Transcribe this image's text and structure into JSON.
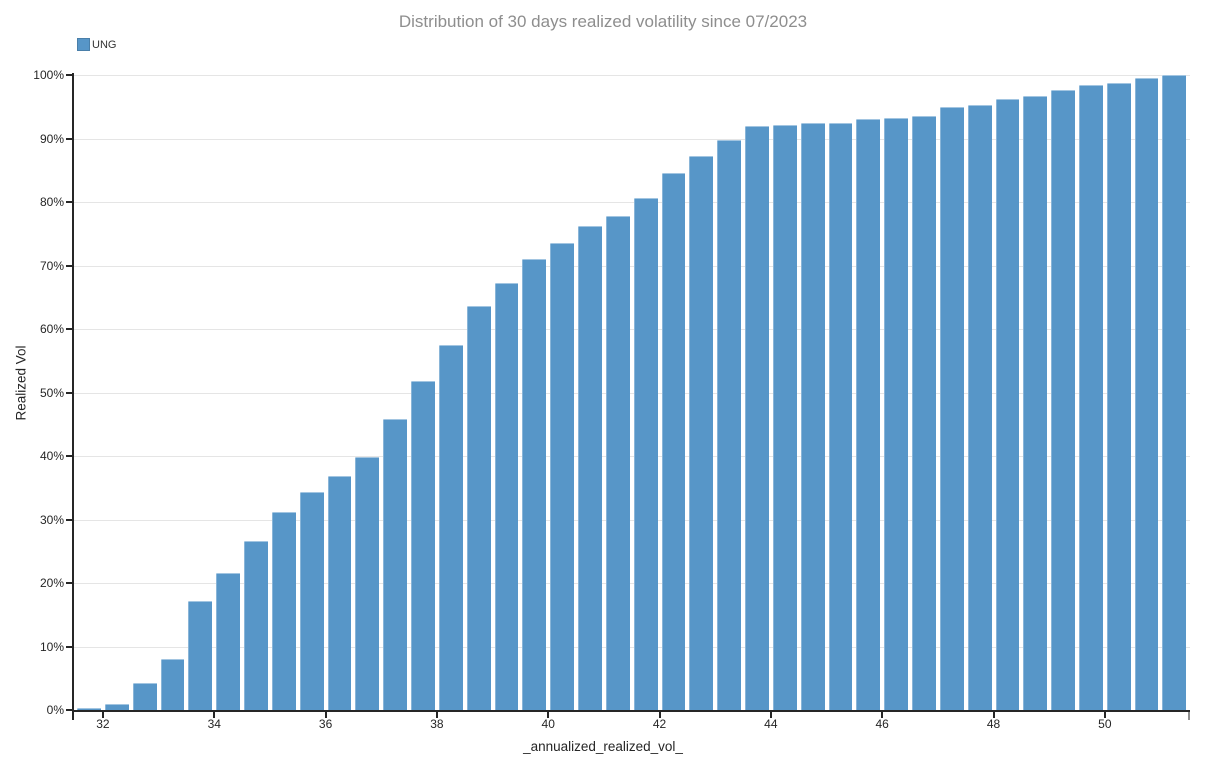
{
  "title": "Distribution of 30 days realized volatility since 07/2023",
  "legend": {
    "position": "top-left",
    "items": [
      {
        "label": "UNG",
        "color": "#5796c8"
      }
    ]
  },
  "chart_data": {
    "type": "bar",
    "subtype": "cumulative-histogram",
    "title": "Distribution of 30 days realized volatility since 07/2023",
    "xlabel": "_annualized_realized_vol_",
    "ylabel": "Realized Vol",
    "grid": "horizontal",
    "legend_position": "top-left",
    "bar_color": "#5796c8",
    "grid_color": "#e5e5e5",
    "axis_color": "#262626",
    "title_color": "#8e8e8e",
    "xlim": [
      31.48,
      51.53
    ],
    "ylim": [
      0,
      100
    ],
    "x_ticks": [
      32,
      34,
      36,
      38,
      40,
      42,
      44,
      46,
      48,
      50
    ],
    "y_ticks": [
      0,
      10,
      20,
      30,
      40,
      50,
      60,
      70,
      80,
      90,
      100
    ],
    "y_tick_suffix": "%",
    "bin_start": 31.5,
    "bin_width": 0.5,
    "x_bin_centers": [
      31.75,
      32.25,
      32.75,
      33.25,
      33.75,
      34.25,
      34.75,
      35.25,
      35.75,
      36.25,
      36.75,
      37.25,
      37.75,
      38.25,
      38.75,
      39.25,
      39.75,
      40.25,
      40.75,
      41.25,
      41.75,
      42.25,
      42.75,
      43.25,
      43.75,
      44.25,
      44.75,
      45.25,
      45.75,
      46.25,
      46.75,
      47.25,
      47.75,
      48.25,
      48.75,
      49.25,
      49.75,
      50.25,
      50.75,
      51.25
    ],
    "series": [
      {
        "name": "UNG",
        "values_pct": [
          0.3,
          1.0,
          4.2,
          8.1,
          17.2,
          21.6,
          26.6,
          31.2,
          34.3,
          36.8,
          39.9,
          45.9,
          51.8,
          57.5,
          63.7,
          67.2,
          71.1,
          73.5,
          76.3,
          77.8,
          80.6,
          84.5,
          87.3,
          89.8,
          91.9,
          92.2,
          92.5,
          92.5,
          93.0,
          93.3,
          93.6,
          94.9,
          95.3,
          96.3,
          96.7,
          97.7,
          98.5,
          98.8,
          99.5,
          100.0
        ]
      }
    ]
  }
}
